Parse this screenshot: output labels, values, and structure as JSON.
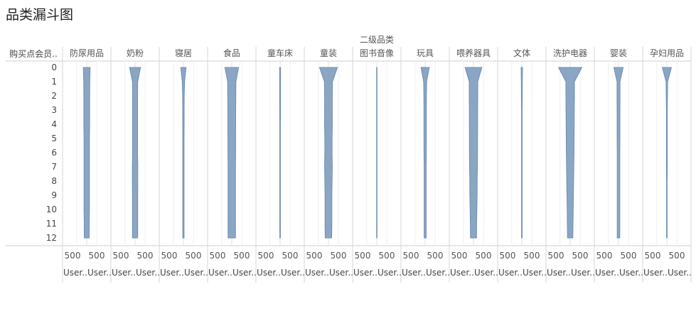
{
  "title": "品类漏斗图",
  "chart_data": {
    "type": "area",
    "column_group_label": "二级品类",
    "row_header": "购买点会员..",
    "rows": [
      "0",
      "1",
      "2",
      "3",
      "4",
      "5",
      "6",
      "7",
      "8",
      "9",
      "10",
      "11",
      "12"
    ],
    "tick_label": "500",
    "axis_label_left": "User..",
    "axis_label_right": "User..",
    "categories": [
      {
        "name": "防尿用品",
        "values": [
          340,
          300,
          290,
          290,
          290,
          270,
          270,
          270,
          270,
          270,
          270,
          250,
          250
        ]
      },
      {
        "name": "奶粉",
        "values": [
          540,
          260,
          250,
          250,
          250,
          250,
          250,
          270,
          270,
          260,
          260,
          260,
          260
        ]
      },
      {
        "name": "寝居",
        "values": [
          260,
          110,
          80,
          70,
          70,
          60,
          60,
          60,
          60,
          60,
          60,
          60,
          60
        ]
      },
      {
        "name": "食品",
        "values": [
          680,
          410,
          400,
          390,
          390,
          380,
          380,
          370,
          370,
          370,
          370,
          370,
          370
        ]
      },
      {
        "name": "童车床",
        "values": [
          50,
          40,
          40,
          40,
          30,
          30,
          30,
          30,
          30,
          30,
          30,
          30,
          30
        ]
      },
      {
        "name": "童装",
        "values": [
          890,
          400,
          380,
          380,
          390,
          360,
          360,
          380,
          360,
          340,
          340,
          340,
          320
        ]
      },
      {
        "name": "图书音像",
        "values": [
          20,
          20,
          20,
          20,
          20,
          20,
          20,
          20,
          20,
          20,
          20,
          20,
          20
        ]
      },
      {
        "name": "玩具",
        "values": [
          410,
          150,
          130,
          120,
          120,
          120,
          110,
          100,
          100,
          100,
          100,
          100,
          100
        ]
      },
      {
        "name": "喂养器具",
        "values": [
          830,
          420,
          420,
          410,
          410,
          400,
          400,
          390,
          370,
          360,
          330,
          310,
          300
        ]
      },
      {
        "name": "文体",
        "values": [
          70,
          50,
          40,
          30,
          30,
          30,
          30,
          30,
          30,
          30,
          30,
          30,
          30
        ]
      },
      {
        "name": "洗护电器",
        "values": [
          1160,
          420,
          420,
          410,
          400,
          390,
          380,
          360,
          340,
          320,
          300,
          280,
          260
        ]
      },
      {
        "name": "婴装",
        "values": [
          460,
          150,
          150,
          140,
          140,
          140,
          130,
          130,
          130,
          130,
          130,
          130,
          130
        ]
      },
      {
        "name": "孕妇用品",
        "values": [
          450,
          80,
          60,
          40,
          40,
          40,
          40,
          40,
          30,
          30,
          30,
          30,
          30
        ]
      }
    ],
    "color": "#8aa6c4",
    "stroke": "#6f8fb3",
    "grid": true
  }
}
